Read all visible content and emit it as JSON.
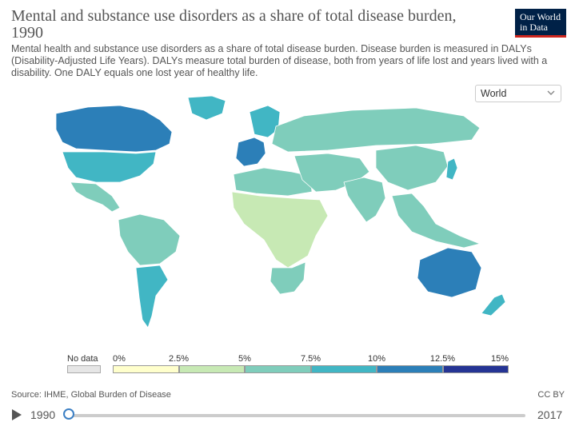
{
  "header": {
    "title": "Mental and substance use disorders as a share of total disease burden, 1990",
    "subtitle": "Mental health and substance use disorders as a share of total disease burden. Disease burden is measured in DALYs (Disability-Adjusted Life Years). DALYs measure total burden of disease, both from years of life lost and years lived with a disability. One DALY equals one lost year of healthy life.",
    "logo_line1": "Our World",
    "logo_line2": "in Data"
  },
  "controls": {
    "region_selected": "World"
  },
  "legend": {
    "nodata_label": "No data",
    "nodata_color": "#e6e6e6",
    "ticks": [
      "0%",
      "2.5%",
      "5%",
      "7.5%",
      "10%",
      "12.5%",
      "15%"
    ],
    "colors": [
      "#ffffcc",
      "#c7e9b4",
      "#7fcdbb",
      "#41b6c4",
      "#2c7fb8",
      "#253494"
    ]
  },
  "map": {
    "regions": [
      {
        "name": "North America north",
        "level": 4
      },
      {
        "name": "North America south",
        "level": 3
      },
      {
        "name": "Greenland",
        "level": 3
      },
      {
        "name": "Mexico and Central America",
        "level": 2
      },
      {
        "name": "South America",
        "level": 2
      },
      {
        "name": "Southern Cone",
        "level": 3
      },
      {
        "name": "Western Europe",
        "level": 4
      },
      {
        "name": "Northern Europe",
        "level": 3
      },
      {
        "name": "Eastern Europe and North Asia",
        "level": 2
      },
      {
        "name": "North Africa",
        "level": 2
      },
      {
        "name": "Sub-Saharan Africa",
        "level": 1
      },
      {
        "name": "Southern Africa",
        "level": 2
      },
      {
        "name": "Middle East and Central Asia",
        "level": 2
      },
      {
        "name": "South Asia",
        "level": 2
      },
      {
        "name": "East Asia",
        "level": 2
      },
      {
        "name": "Japan",
        "level": 3
      },
      {
        "name": "Southeast Asia",
        "level": 2
      },
      {
        "name": "Australia",
        "level": 4
      },
      {
        "name": "New Zealand",
        "level": 3
      }
    ]
  },
  "footer": {
    "source": "Source: IHME, Global Burden of Disease",
    "license": "CC BY"
  },
  "timeline": {
    "start": "1990",
    "end": "2017",
    "selected_fraction": 0.0
  }
}
